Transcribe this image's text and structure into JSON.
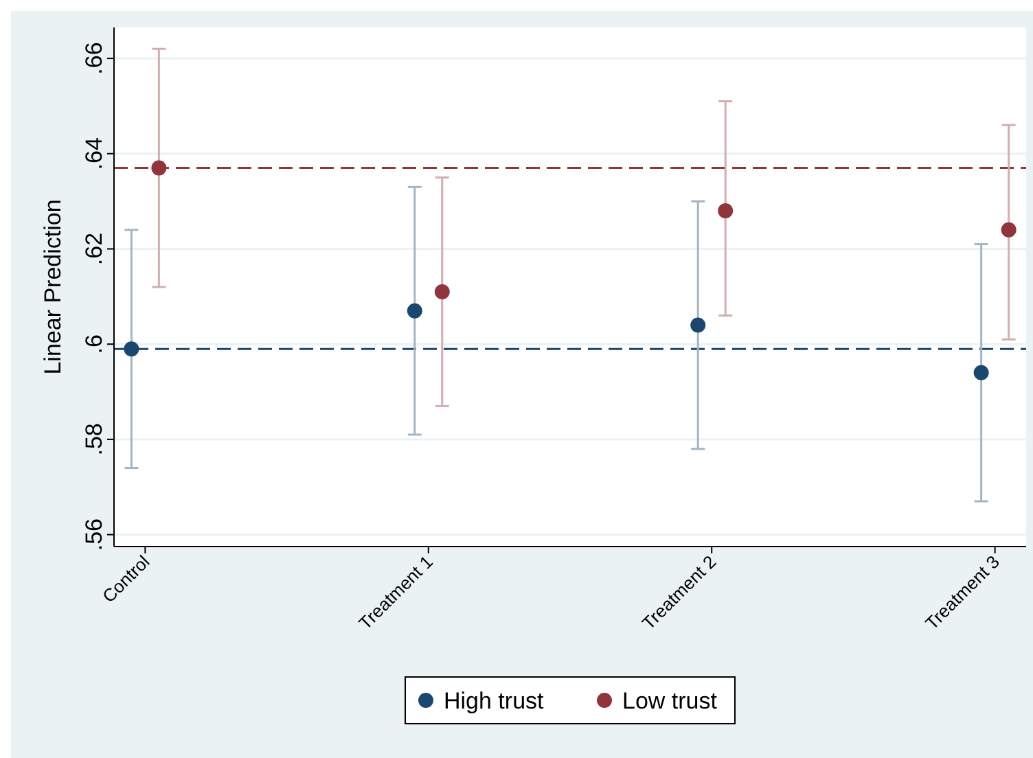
{
  "chart_data": {
    "type": "scatter",
    "ylabel": "Linear Prediction",
    "categories": [
      "Control",
      "Treatment 1",
      "Treatment 2",
      "Treatment 3"
    ],
    "series": [
      {
        "name": "High trust",
        "color": "#1a476f",
        "values": [
          0.599,
          0.607,
          0.604,
          0.594
        ],
        "errors": [
          [
            0.574,
            0.624
          ],
          [
            0.581,
            0.633
          ],
          [
            0.578,
            0.63
          ],
          [
            0.567,
            0.621
          ]
        ]
      },
      {
        "name": "Low trust",
        "color": "#90353b",
        "values": [
          0.637,
          0.611,
          0.628,
          0.624
        ],
        "errors": [
          [
            0.612,
            0.662
          ],
          [
            0.587,
            0.635
          ],
          [
            0.606,
            0.651
          ],
          [
            0.601,
            0.646
          ]
        ]
      }
    ],
    "ylim": [
      0.5575,
      0.6665
    ],
    "yticks": [
      {
        "value": 0.56,
        "label": ".56"
      },
      {
        "value": 0.58,
        "label": ".58"
      },
      {
        "value": 0.6,
        "label": ".6"
      },
      {
        "value": 0.62,
        "label": ".62"
      },
      {
        "value": 0.64,
        "label": ".64"
      },
      {
        "value": 0.66,
        "label": ".66"
      }
    ],
    "ref_lines": [
      {
        "axis": "y",
        "value": 0.599,
        "color": "#1a476f",
        "line_style": "dashed"
      },
      {
        "axis": "y",
        "value": 0.637,
        "color": "#90353b",
        "line_style": "dashed"
      }
    ],
    "grid": "y",
    "legend": "bottom",
    "marker": "circle"
  }
}
